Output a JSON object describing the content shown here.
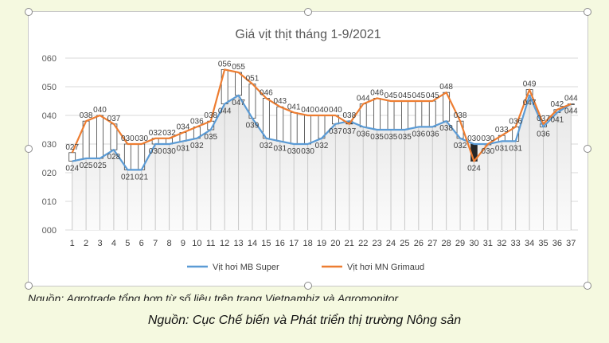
{
  "chart_data": {
    "type": "line",
    "title": "Giá vịt thịt tháng 1-9/2021",
    "xlabel": "",
    "ylabel": "",
    "ylim": [
      0,
      60
    ],
    "yticks": [
      "000",
      "010",
      "020",
      "030",
      "040",
      "050",
      "060"
    ],
    "categories": [
      "1",
      "2",
      "3",
      "4",
      "5",
      "6",
      "7",
      "8",
      "9",
      "10",
      "11",
      "12",
      "13",
      "14",
      "15",
      "16",
      "17",
      "18",
      "19",
      "20",
      "21",
      "22",
      "23",
      "24",
      "25",
      "26",
      "27",
      "28",
      "29",
      "30",
      "31",
      "32",
      "33",
      "34",
      "35",
      "36",
      "37"
    ],
    "series": [
      {
        "name": "Vịt hơi MB Super",
        "color": "#5b9bd5",
        "values": [
          24,
          25,
          25,
          28,
          21,
          21,
          30,
          30,
          31,
          32,
          35,
          44,
          47,
          39,
          32,
          31,
          30,
          30,
          32,
          37,
          38,
          36,
          35,
          35,
          35,
          36,
          36,
          38,
          32,
          30,
          30,
          31,
          31,
          47,
          36,
          41,
          44
        ]
      },
      {
        "name": "Vịt hơi MN Grimaud",
        "color": "#ed7d31",
        "values": [
          27,
          38,
          40,
          37,
          30,
          30,
          32,
          32,
          34,
          36,
          38,
          56,
          55,
          51,
          46,
          43,
          41,
          40,
          40,
          40,
          37,
          44,
          46,
          45,
          45,
          45,
          45,
          48,
          38,
          24,
          30,
          33,
          36,
          49,
          37,
          42,
          44
        ]
      }
    ],
    "data_labels": {
      "series1": [
        "024",
        "025",
        "025",
        "028",
        "021",
        "021",
        "030",
        "030",
        "031",
        "032",
        "035",
        "044",
        "047",
        "039",
        "032",
        "031",
        "030",
        "030",
        "032",
        "037",
        "038",
        "036",
        "035",
        "035",
        "035",
        "036",
        "036",
        "038",
        "032",
        "030",
        "030",
        "031",
        "031",
        "047",
        "036",
        "041",
        "044"
      ],
      "series2": [
        "027",
        "038",
        "040",
        "037",
        "030",
        "030",
        "032",
        "032",
        "034",
        "036",
        "038",
        "056",
        "055",
        "051",
        "046",
        "043",
        "041",
        "040",
        "040",
        "040",
        "037",
        "044",
        "046",
        "045",
        "045",
        "045",
        "045",
        "048",
        "038",
        "024",
        "030",
        "033",
        "036",
        "049",
        "037",
        "042",
        "044"
      ]
    },
    "grid": true,
    "legend": "bottom"
  },
  "captions": {
    "partial": "Nguồn: Agrotrade tổng hợp từ số liệu trên trang Vietnambiz và Agromonitor",
    "source": "Nguồn: Cục Chế biến và Phát triển thị trường Nông sản"
  }
}
